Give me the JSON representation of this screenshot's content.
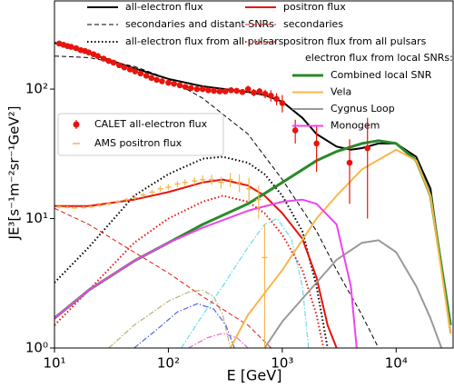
{
  "chart_data": {
    "type": "line",
    "xlabel": "E [GeV]",
    "ylabel": "JE³[s⁻¹m⁻²sr⁻¹GeV²]",
    "xscale": "log",
    "yscale": "log",
    "xlim": [
      10,
      31600
    ],
    "ylim": [
      1,
      480
    ],
    "xticks": [
      {
        "value": 10,
        "label": "10¹"
      },
      {
        "value": 100,
        "label": "10²"
      },
      {
        "value": 1000,
        "label": "10³"
      },
      {
        "value": 10000,
        "label": "10⁴"
      }
    ],
    "yticks": [
      {
        "value": 1,
        "label": "10⁰"
      },
      {
        "value": 10,
        "label": "10¹"
      },
      {
        "value": 100,
        "label": "10²"
      }
    ],
    "series": [
      {
        "name": "all-electron flux",
        "color": "#000000",
        "style": "solid",
        "x": [
          10,
          20,
          50,
          100,
          200,
          500,
          700,
          1000,
          1500,
          2000,
          3000,
          4000,
          5000,
          7000,
          10000,
          15000,
          20000,
          30000
        ],
        "values": [
          228,
          190,
          145,
          120,
          105,
          95,
          90,
          80,
          60,
          45,
          36,
          34,
          35,
          38,
          38,
          30,
          17,
          1.3
        ]
      },
      {
        "name": "secondaries and distant SNRs",
        "color": "#000000",
        "style": "dashed",
        "x": [
          10,
          20,
          50,
          100,
          200,
          500,
          1000,
          2000,
          3000,
          5000,
          7000
        ],
        "values": [
          180,
          175,
          150,
          120,
          85,
          45,
          20,
          8,
          4,
          1.8,
          1.0
        ]
      },
      {
        "name": "all-electron flux from all pulsars",
        "color": "#000000",
        "style": "dotted",
        "x": [
          10,
          20,
          50,
          100,
          200,
          300,
          500,
          700,
          1000,
          1500,
          2000,
          2500
        ],
        "values": [
          3.2,
          6,
          15,
          22,
          29,
          30,
          27,
          22,
          15,
          8,
          3,
          1.0
        ]
      },
      {
        "name": "positron flux",
        "color": "#e8140c",
        "style": "solid",
        "x": [
          10,
          20,
          50,
          100,
          200,
          300,
          500,
          700,
          1000,
          1500,
          2000,
          2500,
          3000
        ],
        "values": [
          12.5,
          12.5,
          14,
          16,
          19,
          20,
          18,
          15,
          11,
          7,
          3.5,
          1.5,
          1.0
        ]
      },
      {
        "name": "secondaries",
        "color": "#e8140c",
        "style": "dashed",
        "x": [
          10,
          20,
          50,
          100,
          200,
          500,
          800
        ],
        "values": [
          12,
          9,
          5.5,
          3.8,
          2.5,
          1.5,
          1.0
        ]
      },
      {
        "name": "positron flux from all pulsars",
        "color": "#e8140c",
        "style": "dotted",
        "x": [
          10,
          20,
          50,
          100,
          200,
          300,
          500,
          700,
          1000,
          1500,
          2000,
          2300
        ],
        "values": [
          1.5,
          2.8,
          6.5,
          10,
          13.5,
          15,
          13.5,
          11,
          7.5,
          4,
          1.8,
          1.0
        ]
      }
    ],
    "local_snr_title": "electron flux from local SNRs:",
    "local_snr_series": [
      {
        "name": "Combined local SNR",
        "color": "#2a8a2a",
        "style": "solid",
        "x": [
          10,
          20,
          50,
          100,
          200,
          500,
          1000,
          2000,
          3000,
          5000,
          7000,
          10000,
          15000,
          20000,
          30000
        ],
        "values": [
          1.7,
          2.8,
          4.7,
          6.5,
          9,
          13,
          19,
          28,
          33,
          38,
          40,
          38,
          28,
          15,
          1.5
        ]
      },
      {
        "name": "Vela",
        "color": "#f9b64a",
        "style": "solid",
        "x": [
          350,
          500,
          1000,
          2000,
          3000,
          5000,
          10000,
          15000,
          20000,
          30000
        ],
        "values": [
          1.0,
          1.8,
          4,
          10,
          15,
          24,
          34,
          28,
          15,
          1.3
        ]
      },
      {
        "name": "Cygnus Loop",
        "color": "#999999",
        "style": "solid",
        "x": [
          700,
          1000,
          2000,
          3000,
          5000,
          7000,
          10000,
          15000,
          20000,
          25000
        ],
        "values": [
          1.0,
          1.6,
          3.2,
          4.8,
          6.5,
          6.8,
          5.5,
          3,
          1.7,
          1.0
        ]
      },
      {
        "name": "Monogem",
        "color": "#ee44ee",
        "style": "solid",
        "x": [
          10,
          20,
          50,
          100,
          200,
          500,
          1000,
          1500,
          2000,
          3000,
          4000,
          4500
        ],
        "values": [
          1.7,
          2.8,
          4.7,
          6.5,
          8.5,
          11.5,
          13.5,
          14,
          13,
          9,
          3,
          1.0
        ]
      }
    ],
    "pulsar_series": [
      {
        "color": "#b5b56a",
        "style": "dashdot",
        "x": [
          30,
          50,
          100,
          150,
          200,
          250,
          300,
          350
        ],
        "values": [
          1.0,
          1.5,
          2.3,
          2.7,
          2.8,
          2.5,
          1.8,
          1.0
        ]
      },
      {
        "color": "#5566dd",
        "style": "dashdot",
        "x": [
          50,
          80,
          120,
          180,
          250,
          320,
          380
        ],
        "values": [
          1.0,
          1.4,
          1.9,
          2.2,
          2.0,
          1.5,
          1.0
        ]
      },
      {
        "color": "#66ddee",
        "style": "dashdot",
        "x": [
          130,
          200,
          300,
          500,
          700,
          900,
          1200,
          1500,
          1700
        ],
        "values": [
          1.0,
          1.8,
          3,
          6,
          9,
          10,
          7,
          3,
          1.0
        ]
      },
      {
        "color": "#ee66cc",
        "style": "dashdot",
        "x": [
          150,
          220,
          300,
          400,
          500
        ],
        "values": [
          1.0,
          1.2,
          1.3,
          1.2,
          1.0
        ]
      }
    ],
    "points": [
      {
        "name": "CALET all-electron flux",
        "color": "#e8140c",
        "marker": "circle",
        "x": [
          11,
          12,
          13,
          14,
          15.5,
          17,
          18.5,
          20,
          22,
          24,
          27,
          30,
          33,
          37,
          41,
          46,
          51,
          57,
          64,
          71,
          79,
          88,
          100,
          112,
          126,
          141,
          158,
          178,
          200,
          224,
          251,
          282,
          316,
          355,
          398,
          447,
          501,
          562,
          631,
          708,
          794,
          891,
          1000,
          1300,
          2000,
          3900,
          5600
        ],
        "values": [
          225,
          220,
          215,
          212,
          207,
          200,
          197,
          192,
          186,
          180,
          172,
          165,
          160,
          153,
          147,
          142,
          137,
          132,
          127,
          122,
          118,
          115,
          112,
          110,
          107,
          104,
          102,
          100,
          100,
          98,
          97,
          96,
          96,
          98,
          97,
          95,
          100,
          94,
          96,
          92,
          89,
          84,
          78,
          48,
          38,
          27,
          35
        ],
        "errors": [
          3,
          3,
          3,
          3,
          3,
          3,
          3,
          3,
          3,
          3,
          3,
          3,
          3,
          3,
          3,
          3,
          3,
          3,
          3,
          3,
          3,
          3,
          3,
          3,
          3,
          3,
          3,
          3,
          3,
          4,
          4,
          4,
          4,
          5,
          5,
          5,
          6,
          6,
          6,
          7,
          9,
          9,
          12,
          10,
          15,
          14,
          25
        ]
      },
      {
        "name": "AMS positron flux",
        "color": "#f9b64a",
        "marker": "dash",
        "x": [
          11,
          13,
          15,
          18,
          21,
          25,
          30,
          36,
          43,
          51,
          60,
          72,
          85,
          100,
          120,
          140,
          170,
          200,
          240,
          290,
          350,
          420,
          510,
          620,
          700
        ],
        "values": [
          12.3,
          12.2,
          12.1,
          12.2,
          12.3,
          12.6,
          13,
          13.5,
          14,
          14.5,
          15.2,
          16,
          17,
          17.5,
          18.5,
          19,
          19.5,
          20,
          20,
          19,
          20,
          19,
          17,
          14,
          5
        ],
        "errors": [
          0.3,
          0.3,
          0.3,
          0.3,
          0.3,
          0.4,
          0.4,
          0.4,
          0.5,
          0.5,
          0.6,
          0.7,
          0.8,
          0.9,
          1,
          1.1,
          1.3,
          1.5,
          1.8,
          2,
          2.5,
          3,
          3.5,
          4,
          4
        ]
      }
    ]
  }
}
